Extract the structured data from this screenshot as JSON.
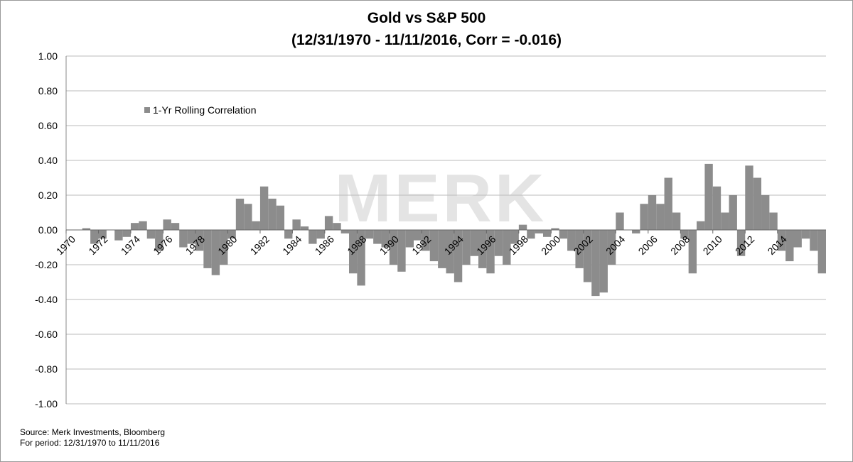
{
  "chart_data": {
    "type": "bar",
    "title": "Gold vs S&P 500",
    "subtitle": "(12/31/1970 - 11/11/2016, Corr = -0.016)",
    "watermark": "MERK",
    "notes": [
      "Source: Merk Investments, Bloomberg",
      "For period: 12/31/1970 to 11/11/2016"
    ],
    "legend": "top-left",
    "grid": true,
    "xlim": [
      1970,
      2017
    ],
    "xticks": [
      1970,
      1972,
      1974,
      1976,
      1978,
      1980,
      1982,
      1984,
      1986,
      1988,
      1990,
      1992,
      1994,
      1996,
      1998,
      2000,
      2002,
      2004,
      2006,
      2008,
      2010,
      2012,
      2014
    ],
    "ylim": [
      -1,
      1
    ],
    "yticks": [
      {
        "value": -1,
        "label": "-1.00"
      },
      {
        "value": -0.8,
        "label": "-0.80"
      },
      {
        "value": -0.6,
        "label": "-0.60"
      },
      {
        "value": -0.4,
        "label": "-0.40"
      },
      {
        "value": -0.2,
        "label": "-0.20"
      },
      {
        "value": 0,
        "label": "0.00"
      },
      {
        "value": 0.2,
        "label": "0.20"
      },
      {
        "value": 0.4,
        "label": "0.40"
      },
      {
        "value": 0.6,
        "label": "0.60"
      },
      {
        "value": 0.8,
        "label": "0.80"
      },
      {
        "value": 1,
        "label": "1.00"
      }
    ],
    "x": [
      1971.0,
      1971.5,
      1972.0,
      1972.5,
      1973.0,
      1973.5,
      1974.0,
      1974.5,
      1975.0,
      1975.5,
      1976.0,
      1976.5,
      1977.0,
      1977.5,
      1978.0,
      1978.5,
      1979.0,
      1979.5,
      1980.0,
      1980.5,
      1981.0,
      1981.5,
      1982.0,
      1982.5,
      1983.0,
      1983.5,
      1984.0,
      1984.5,
      1985.0,
      1985.5,
      1986.0,
      1986.5,
      1987.0,
      1987.5,
      1988.0,
      1988.5,
      1989.0,
      1989.5,
      1990.0,
      1990.5,
      1991.0,
      1991.5,
      1992.0,
      1992.5,
      1993.0,
      1993.5,
      1994.0,
      1994.5,
      1995.0,
      1995.5,
      1996.0,
      1996.5,
      1997.0,
      1997.5,
      1998.0,
      1998.5,
      1999.0,
      1999.5,
      2000.0,
      2000.5,
      2001.0,
      2001.5,
      2002.0,
      2002.5,
      2003.0,
      2003.5,
      2004.0,
      2004.5,
      2005.0,
      2005.5,
      2006.0,
      2006.5,
      2007.0,
      2007.5,
      2008.0,
      2008.5,
      2009.0,
      2009.5,
      2010.0,
      2010.5,
      2011.0,
      2011.5,
      2012.0,
      2012.5,
      2013.0,
      2013.5,
      2014.0,
      2014.5,
      2015.0,
      2015.5,
      2016.0,
      2016.5
    ],
    "series": [
      {
        "name": "1-Yr Rolling Correlation",
        "color": "#8c8c8c",
        "values": [
          0.01,
          -0.08,
          -0.05,
          0.0,
          -0.06,
          -0.04,
          0.04,
          0.05,
          -0.05,
          -0.12,
          0.06,
          0.04,
          -0.1,
          -0.08,
          -0.12,
          -0.22,
          -0.26,
          -0.2,
          -0.05,
          0.18,
          0.15,
          0.05,
          0.25,
          0.18,
          0.14,
          -0.05,
          0.06,
          0.02,
          -0.08,
          -0.05,
          0.08,
          0.04,
          -0.02,
          -0.25,
          -0.32,
          -0.05,
          -0.08,
          -0.1,
          -0.2,
          -0.24,
          -0.1,
          -0.06,
          -0.12,
          -0.18,
          -0.22,
          -0.25,
          -0.3,
          -0.2,
          -0.15,
          -0.22,
          -0.25,
          -0.15,
          -0.2,
          -0.08,
          0.03,
          -0.05,
          -0.02,
          -0.04,
          0.01,
          -0.05,
          -0.12,
          -0.22,
          -0.3,
          -0.38,
          -0.36,
          -0.2,
          0.1,
          0.0,
          -0.02,
          0.15,
          0.2,
          0.15,
          0.3,
          0.1,
          -0.05,
          -0.25,
          0.05,
          0.38,
          0.25,
          0.1,
          0.2,
          -0.15,
          0.37,
          0.3,
          0.2,
          0.1,
          -0.12,
          -0.18,
          -0.1,
          -0.05,
          -0.12,
          -0.25
        ]
      }
    ]
  }
}
